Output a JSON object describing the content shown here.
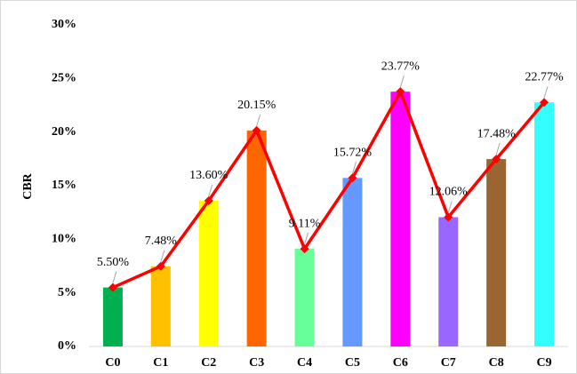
{
  "chart_data": {
    "type": "bar",
    "y_label": "CBR",
    "categories": [
      "C0",
      "C1",
      "C2",
      "C3",
      "C4",
      "C5",
      "C6",
      "C7",
      "C8",
      "C9"
    ],
    "values": [
      5.5,
      7.48,
      13.6,
      20.15,
      9.11,
      15.72,
      23.77,
      12.06,
      17.48,
      22.77
    ],
    "value_labels": [
      "5.50%",
      "7.48%",
      "13.60%",
      "20.15%",
      "9.11%",
      "15.72%",
      "23.77%",
      "12.06%",
      "17.48%",
      "22.77%"
    ],
    "colors": [
      "#00b050",
      "#ffc000",
      "#ffff00",
      "#ff6600",
      "#66ff99",
      "#6699ff",
      "#ff00ff",
      "#9966ff",
      "#996633",
      "#33ffff"
    ],
    "line_color": "#ff0000",
    "ylim": [
      0,
      30
    ],
    "yticks": [
      {
        "value": 0,
        "label": "0%"
      },
      {
        "value": 5,
        "label": "5%"
      },
      {
        "value": 10,
        "label": "10%"
      },
      {
        "value": 15,
        "label": "15%"
      },
      {
        "value": 20,
        "label": "20%"
      },
      {
        "value": 25,
        "label": "25%"
      },
      {
        "value": 30,
        "label": "30%"
      }
    ]
  }
}
